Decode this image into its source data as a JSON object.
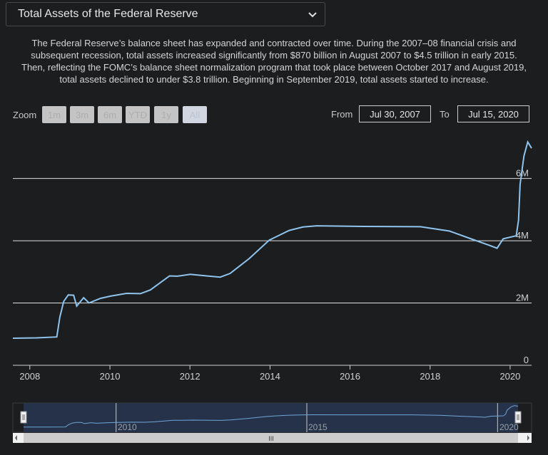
{
  "selector": {
    "value": "Total Assets of the Federal Reserve",
    "icon": "chevron-down-icon"
  },
  "description": "The Federal Reserve’s balance sheet has expanded and contracted over time. During the 2007–08 financial crisis and subsequent recession, total assets increased significantly from $870 billion in August 2007 to $4.5 trillion in early 2015. Then, reflecting the FOMC’s balance sheet normalization program that took place between October 2017 and August 2019, total assets declined to under $3.8 trillion. Beginning in September 2019, total assets started to increase.",
  "range_selector": {
    "zoom_label": "Zoom",
    "buttons": [
      "1m",
      "3m",
      "6m",
      "YTD",
      "1y",
      "All"
    ],
    "active": "All",
    "from_label": "From",
    "from_value": "Jul 30, 2007",
    "to_label": "To",
    "to_value": "Jul 15, 2020"
  },
  "navigator": {
    "labels": [
      "2010",
      "2015",
      "2020"
    ],
    "scrollbar_grip": "III"
  },
  "colors": {
    "line": "#8ec4ee",
    "background": "#1c1d1f",
    "grid": "#e0e0e0",
    "navigator_mask": "#25324a"
  },
  "chart_data": {
    "type": "line",
    "title": "",
    "xlabel": "",
    "ylabel": "",
    "x_type": "date",
    "xlim": [
      "2007-07-30",
      "2020-07-15"
    ],
    "ylim": [
      0,
      7.5
    ],
    "y_unit": "trillion USD",
    "y_ticks": [
      0,
      2,
      4,
      6
    ],
    "y_tick_labels": [
      "0",
      "2M",
      "4M",
      "6M"
    ],
    "x_ticks": [
      "2008",
      "2010",
      "2012",
      "2014",
      "2016",
      "2018",
      "2020"
    ],
    "grid": "horizontal",
    "legend": "none",
    "series": [
      {
        "points": [
          [
            "2007-07-30",
            0.87
          ],
          [
            "2008-03-01",
            0.88
          ],
          [
            "2008-09-03",
            0.91
          ],
          [
            "2008-10-01",
            1.55
          ],
          [
            "2008-11-05",
            2.05
          ],
          [
            "2008-12-17",
            2.26
          ],
          [
            "2009-02-04",
            2.25
          ],
          [
            "2009-03-04",
            1.9
          ],
          [
            "2009-05-06",
            2.17
          ],
          [
            "2009-06-24",
            2.0
          ],
          [
            "2009-10-07",
            2.15
          ],
          [
            "2010-01-06",
            2.22
          ],
          [
            "2010-06-02",
            2.31
          ],
          [
            "2010-10-06",
            2.3
          ],
          [
            "2011-01-05",
            2.42
          ],
          [
            "2011-06-29",
            2.87
          ],
          [
            "2011-09-07",
            2.86
          ],
          [
            "2012-01-04",
            2.92
          ],
          [
            "2012-06-27",
            2.86
          ],
          [
            "2012-10-03",
            2.83
          ],
          [
            "2013-01-02",
            2.95
          ],
          [
            "2013-06-26",
            3.43
          ],
          [
            "2013-12-25",
            4.02
          ],
          [
            "2014-06-25",
            4.33
          ],
          [
            "2014-10-29",
            4.44
          ],
          [
            "2015-03-04",
            4.48
          ],
          [
            "2016-03-02",
            4.46
          ],
          [
            "2017-10-04",
            4.45
          ],
          [
            "2018-06-27",
            4.31
          ],
          [
            "2019-01-02",
            4.07
          ],
          [
            "2019-06-26",
            3.85
          ],
          [
            "2019-09-04",
            3.76
          ],
          [
            "2019-10-30",
            4.06
          ],
          [
            "2020-02-26",
            4.16
          ],
          [
            "2020-03-18",
            4.66
          ],
          [
            "2020-04-01",
            5.81
          ],
          [
            "2020-05-06",
            6.72
          ],
          [
            "2020-06-10",
            7.17
          ],
          [
            "2020-07-15",
            6.97
          ]
        ]
      }
    ]
  }
}
